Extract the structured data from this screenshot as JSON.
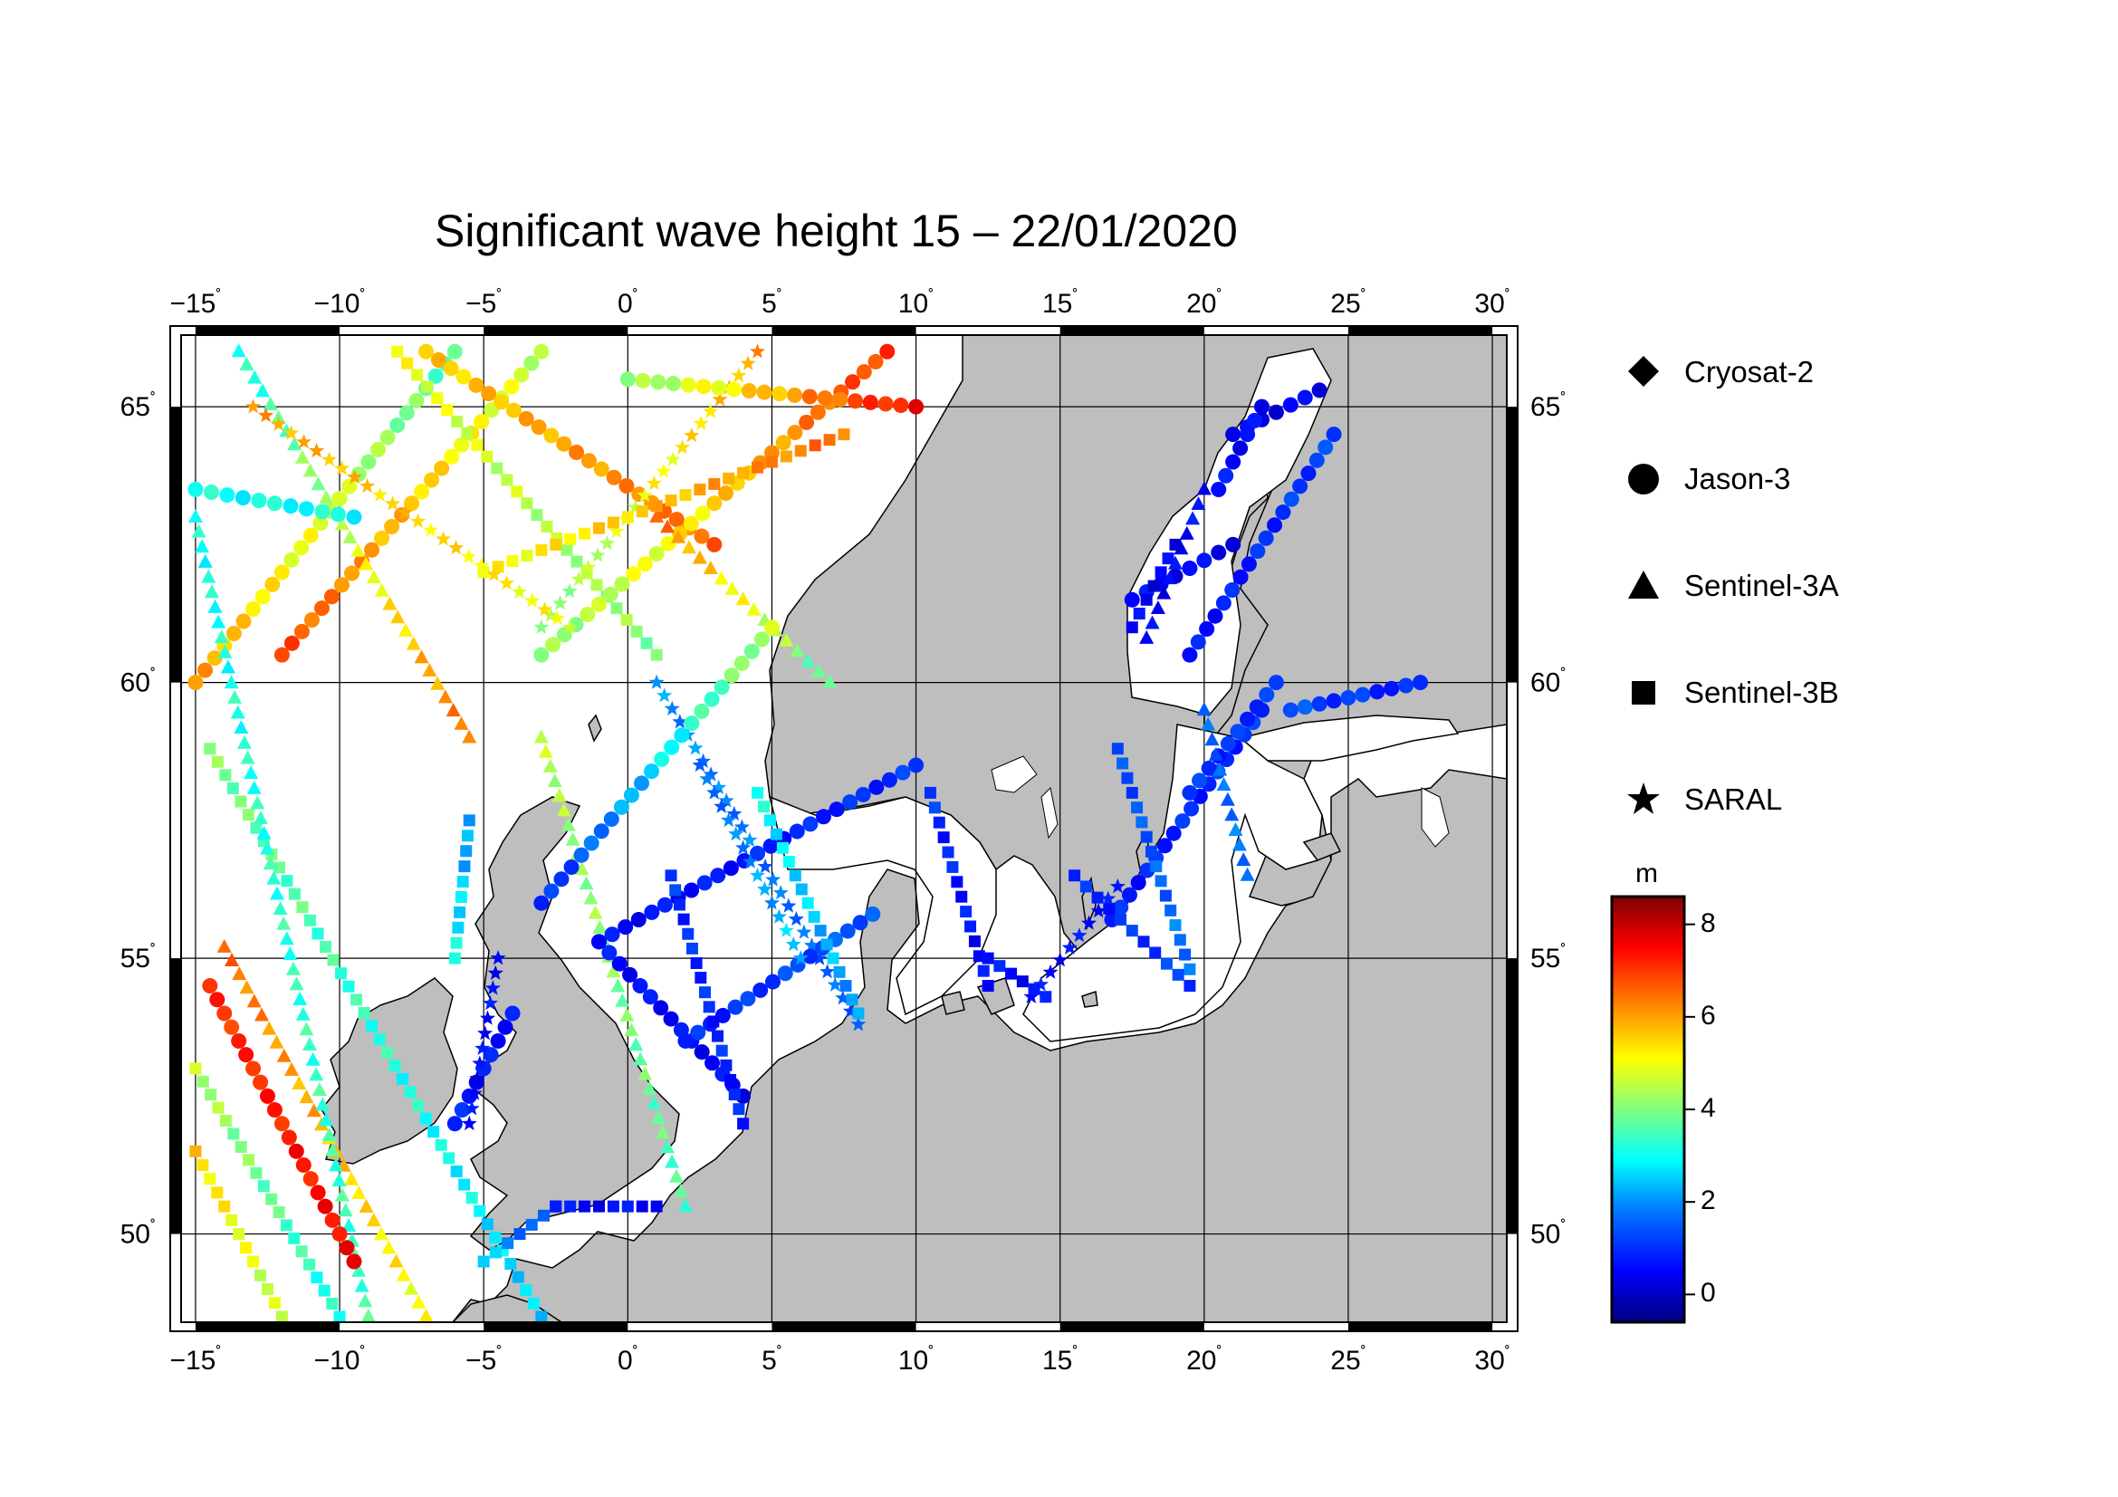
{
  "title": "Significant wave height 15 – 22/01/2020",
  "map": {
    "lon_range": [
      -15.5,
      30.5
    ],
    "lat_range": [
      48.4,
      66.3
    ],
    "lon_ticks": [
      "−15",
      "−10",
      "−5",
      "0",
      "5",
      "10",
      "15",
      "20",
      "25",
      "30"
    ],
    "lon_tick_values": [
      -15,
      -10,
      -5,
      0,
      5,
      10,
      15,
      20,
      25,
      30
    ],
    "lat_ticks": [
      "50",
      "55",
      "60",
      "65"
    ],
    "lat_tick_values": [
      50,
      55,
      60,
      65
    ],
    "degree_symbol": "˚",
    "land_color": "#bebebe",
    "sea_color": "#ffffff",
    "grid": true
  },
  "legend": {
    "items": [
      {
        "label": "Cryosat-2",
        "symbol": "diamond-icon"
      },
      {
        "label": "Jason-3",
        "symbol": "circle-icon"
      },
      {
        "label": "Sentinel-3A",
        "symbol": "triangle-icon"
      },
      {
        "label": "Sentinel-3B",
        "symbol": "square-icon"
      },
      {
        "label": "SARAL",
        "symbol": "star-icon"
      }
    ]
  },
  "colorbar": {
    "unit": "m",
    "min": -0.6,
    "max": 8.6,
    "ticks": [
      "8",
      "6",
      "4",
      "2",
      "0"
    ],
    "tick_values": [
      8,
      6,
      4,
      2,
      0
    ],
    "colors": [
      "#00007f",
      "#0000ff",
      "#0080ff",
      "#00ffff",
      "#80ff80",
      "#ffff00",
      "#ff8000",
      "#ff0000",
      "#7f0000"
    ]
  },
  "tracks": [
    {
      "sat": "square",
      "from": [
        -14.5,
        58.8
      ],
      "to": [
        -3.0,
        48.5
      ],
      "h": [
        4.0,
        2.5
      ]
    },
    {
      "sat": "triangle",
      "from": [
        -14.0,
        55.2
      ],
      "to": [
        -7.0,
        48.5
      ],
      "h": [
        6.5,
        5.0
      ]
    },
    {
      "sat": "circle",
      "from": [
        -15.0,
        60.0
      ],
      "to": [
        -6.0,
        66.0
      ],
      "h": [
        6.0,
        3.5
      ]
    },
    {
      "sat": "square",
      "from": [
        -10.0,
        48.5
      ],
      "to": [
        -15.0,
        53.0
      ],
      "h": [
        3.0,
        4.5
      ]
    },
    {
      "sat": "triangle",
      "from": [
        -15.0,
        63.0
      ],
      "to": [
        -9.0,
        48.5
      ],
      "h": [
        3.0,
        3.5
      ]
    },
    {
      "sat": "circle",
      "from": [
        -12.0,
        60.5
      ],
      "to": [
        -3.0,
        66.0
      ],
      "h": [
        6.8,
        4.5
      ]
    },
    {
      "sat": "square",
      "from": [
        -12.0,
        48.5
      ],
      "to": [
        -15.0,
        51.5
      ],
      "h": [
        4.5,
        5.5
      ]
    },
    {
      "sat": "triangle",
      "from": [
        -13.5,
        66.0
      ],
      "to": [
        -5.5,
        59.0
      ],
      "h": [
        3.0,
        6.5
      ]
    },
    {
      "sat": "circle",
      "from": [
        -14.5,
        54.5
      ],
      "to": [
        -9.5,
        49.5
      ],
      "h": [
        7.0,
        7.5
      ]
    },
    {
      "sat": "square",
      "from": [
        -8.0,
        66.0
      ],
      "to": [
        1.0,
        60.5
      ],
      "h": [
        5.0,
        4.0
      ]
    },
    {
      "sat": "circle",
      "from": [
        -7.0,
        66.0
      ],
      "to": [
        3.0,
        62.5
      ],
      "h": [
        5.5,
        6.5
      ]
    },
    {
      "sat": "star",
      "from": [
        -3.0,
        61.0
      ],
      "to": [
        4.5,
        66.0
      ],
      "h": [
        4.0,
        6.0
      ]
    },
    {
      "sat": "circle",
      "from": [
        -3.0,
        60.5
      ],
      "to": [
        9.0,
        66.0
      ],
      "h": [
        4.0,
        7.0
      ]
    },
    {
      "sat": "triangle",
      "from": [
        1.0,
        63.0
      ],
      "to": [
        7.0,
        60.0
      ],
      "h": [
        6.5,
        3.5
      ]
    },
    {
      "sat": "square",
      "from": [
        -5.0,
        62.0
      ],
      "to": [
        7.5,
        64.5
      ],
      "h": [
        5.0,
        6.5
      ]
    },
    {
      "sat": "circle",
      "from": [
        0.0,
        65.5
      ],
      "to": [
        10.0,
        65.0
      ],
      "h": [
        4.0,
        7.5
      ]
    },
    {
      "sat": "star",
      "from": [
        -13.0,
        65.0
      ],
      "to": [
        -2.0,
        61.0
      ],
      "h": [
        6.0,
        5.0
      ]
    },
    {
      "sat": "circle",
      "from": [
        -15.0,
        63.5
      ],
      "to": [
        -9.5,
        63.0
      ],
      "h": [
        3.0,
        3.0
      ]
    },
    {
      "sat": "triangle",
      "from": [
        -3.0,
        59.0
      ],
      "to": [
        2.0,
        50.5
      ],
      "h": [
        4.5,
        3.5
      ]
    },
    {
      "sat": "star",
      "from": [
        1.0,
        60.0
      ],
      "to": [
        8.0,
        53.8
      ],
      "h": [
        2.0,
        1.5
      ]
    },
    {
      "sat": "square",
      "from": [
        -5.5,
        57.5
      ],
      "to": [
        -6.0,
        55.0
      ],
      "h": [
        2.0,
        3.0
      ]
    },
    {
      "sat": "circle",
      "from": [
        -3.0,
        56.0
      ],
      "to": [
        5.0,
        61.0
      ],
      "h": [
        0.8,
        4.5
      ]
    },
    {
      "sat": "circle",
      "from": [
        -1.0,
        55.3
      ],
      "to": [
        4.0,
        52.5
      ],
      "h": [
        0.6,
        0.5
      ]
    },
    {
      "sat": "circle",
      "from": [
        -1.0,
        55.3
      ],
      "to": [
        10.0,
        58.5
      ],
      "h": [
        0.5,
        1.0
      ]
    },
    {
      "sat": "circle",
      "from": [
        2.0,
        53.5
      ],
      "to": [
        8.5,
        55.8
      ],
      "h": [
        0.8,
        1.5
      ]
    },
    {
      "sat": "square",
      "from": [
        1.5,
        56.5
      ],
      "to": [
        4.0,
        52.0
      ],
      "h": [
        1.0,
        0.8
      ]
    },
    {
      "sat": "star",
      "from": [
        2.5,
        58.5
      ],
      "to": [
        6.0,
        55.0
      ],
      "h": [
        1.5,
        2.5
      ]
    },
    {
      "sat": "square",
      "from": [
        4.5,
        58.0
      ],
      "to": [
        8.0,
        54.0
      ],
      "h": [
        3.0,
        2.0
      ]
    },
    {
      "sat": "square",
      "from": [
        10.5,
        58.0
      ],
      "to": [
        12.5,
        54.5
      ],
      "h": [
        1.0,
        0.5
      ]
    },
    {
      "sat": "circle",
      "from": [
        21.0,
        64.5
      ],
      "to": [
        24.0,
        65.3
      ],
      "h": [
        0.3,
        0.4
      ]
    },
    {
      "sat": "circle",
      "from": [
        20.5,
        63.5
      ],
      "to": [
        22.0,
        65.0
      ],
      "h": [
        0.6,
        0.5
      ]
    },
    {
      "sat": "circle",
      "from": [
        17.5,
        61.5
      ],
      "to": [
        21.0,
        62.5
      ],
      "h": [
        0.5,
        0.4
      ]
    },
    {
      "sat": "triangle",
      "from": [
        18.0,
        60.8
      ],
      "to": [
        20.0,
        63.5
      ],
      "h": [
        0.4,
        0.6
      ]
    },
    {
      "sat": "circle",
      "from": [
        19.5,
        60.5
      ],
      "to": [
        24.5,
        64.5
      ],
      "h": [
        0.6,
        1.2
      ]
    },
    {
      "sat": "square",
      "from": [
        17.5,
        61.0
      ],
      "to": [
        19.0,
        62.5
      ],
      "h": [
        0.4,
        0.4
      ]
    },
    {
      "sat": "circle",
      "from": [
        16.8,
        55.7
      ],
      "to": [
        22.0,
        59.5
      ],
      "h": [
        0.8,
        1.0
      ]
    },
    {
      "sat": "square",
      "from": [
        15.5,
        56.5
      ],
      "to": [
        19.5,
        54.5
      ],
      "h": [
        0.8,
        1.2
      ]
    },
    {
      "sat": "square",
      "from": [
        17.0,
        58.8
      ],
      "to": [
        19.5,
        54.8
      ],
      "h": [
        1.2,
        1.8
      ]
    },
    {
      "sat": "circle",
      "from": [
        19.5,
        58.0
      ],
      "to": [
        22.5,
        60.0
      ],
      "h": [
        1.0,
        1.0
      ]
    },
    {
      "sat": "circle",
      "from": [
        23.0,
        59.5
      ],
      "to": [
        27.5,
        60.0
      ],
      "h": [
        1.3,
        0.8
      ]
    },
    {
      "sat": "triangle",
      "from": [
        20.0,
        59.5
      ],
      "to": [
        21.5,
        56.5
      ],
      "h": [
        1.5,
        1.8
      ]
    },
    {
      "sat": "star",
      "from": [
        14.0,
        54.3
      ],
      "to": [
        17.0,
        56.3
      ],
      "h": [
        0.6,
        0.6
      ]
    },
    {
      "sat": "square",
      "from": [
        12.5,
        55.0
      ],
      "to": [
        14.5,
        54.3
      ],
      "h": [
        0.6,
        0.6
      ]
    },
    {
      "sat": "circle",
      "from": [
        -6.0,
        52.0
      ],
      "to": [
        -4.0,
        54.0
      ],
      "h": [
        0.8,
        0.6
      ]
    },
    {
      "sat": "star",
      "from": [
        -5.5,
        52.0
      ],
      "to": [
        -4.5,
        55.0
      ],
      "h": [
        0.5,
        0.6
      ]
    },
    {
      "sat": "square",
      "from": [
        -2.5,
        50.5
      ],
      "to": [
        1.0,
        50.5
      ],
      "h": [
        0.5,
        0.6
      ]
    },
    {
      "sat": "square",
      "from": [
        -5.0,
        49.5
      ],
      "to": [
        -2.5,
        50.5
      ],
      "h": [
        2.5,
        1.0
      ]
    }
  ]
}
